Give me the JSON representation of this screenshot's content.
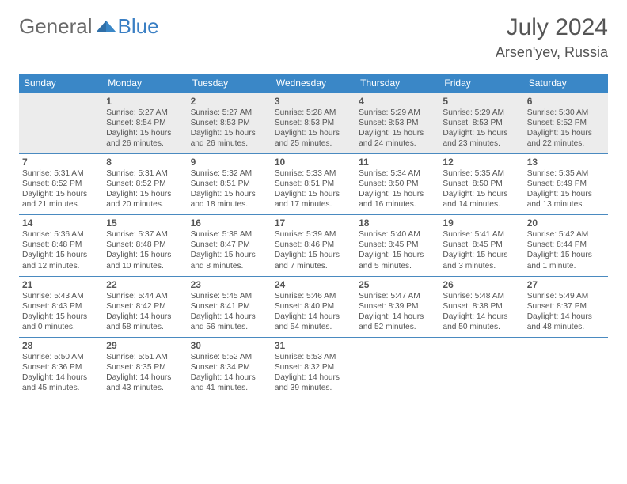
{
  "brand": {
    "general": "General",
    "blue": "Blue"
  },
  "title": "July 2024",
  "location": "Arsen'yev, Russia",
  "colors": {
    "header_bg": "#3a87c7",
    "header_text": "#ffffff",
    "cell_border": "#4a8ac0",
    "first_row_bg": "#ececec",
    "text": "#555555",
    "logo_grey": "#6a6a6a",
    "logo_blue": "#3a7fc4",
    "page_bg": "#ffffff"
  },
  "day_names": [
    "Sunday",
    "Monday",
    "Tuesday",
    "Wednesday",
    "Thursday",
    "Friday",
    "Saturday"
  ],
  "start_weekday": 1,
  "days": [
    {
      "n": 1,
      "sr": "5:27 AM",
      "ss": "8:54 PM",
      "dl": "15 hours and 26 minutes."
    },
    {
      "n": 2,
      "sr": "5:27 AM",
      "ss": "8:53 PM",
      "dl": "15 hours and 26 minutes."
    },
    {
      "n": 3,
      "sr": "5:28 AM",
      "ss": "8:53 PM",
      "dl": "15 hours and 25 minutes."
    },
    {
      "n": 4,
      "sr": "5:29 AM",
      "ss": "8:53 PM",
      "dl": "15 hours and 24 minutes."
    },
    {
      "n": 5,
      "sr": "5:29 AM",
      "ss": "8:53 PM",
      "dl": "15 hours and 23 minutes."
    },
    {
      "n": 6,
      "sr": "5:30 AM",
      "ss": "8:52 PM",
      "dl": "15 hours and 22 minutes."
    },
    {
      "n": 7,
      "sr": "5:31 AM",
      "ss": "8:52 PM",
      "dl": "15 hours and 21 minutes."
    },
    {
      "n": 8,
      "sr": "5:31 AM",
      "ss": "8:52 PM",
      "dl": "15 hours and 20 minutes."
    },
    {
      "n": 9,
      "sr": "5:32 AM",
      "ss": "8:51 PM",
      "dl": "15 hours and 18 minutes."
    },
    {
      "n": 10,
      "sr": "5:33 AM",
      "ss": "8:51 PM",
      "dl": "15 hours and 17 minutes."
    },
    {
      "n": 11,
      "sr": "5:34 AM",
      "ss": "8:50 PM",
      "dl": "15 hours and 16 minutes."
    },
    {
      "n": 12,
      "sr": "5:35 AM",
      "ss": "8:50 PM",
      "dl": "15 hours and 14 minutes."
    },
    {
      "n": 13,
      "sr": "5:35 AM",
      "ss": "8:49 PM",
      "dl": "15 hours and 13 minutes."
    },
    {
      "n": 14,
      "sr": "5:36 AM",
      "ss": "8:48 PM",
      "dl": "15 hours and 12 minutes."
    },
    {
      "n": 15,
      "sr": "5:37 AM",
      "ss": "8:48 PM",
      "dl": "15 hours and 10 minutes."
    },
    {
      "n": 16,
      "sr": "5:38 AM",
      "ss": "8:47 PM",
      "dl": "15 hours and 8 minutes."
    },
    {
      "n": 17,
      "sr": "5:39 AM",
      "ss": "8:46 PM",
      "dl": "15 hours and 7 minutes."
    },
    {
      "n": 18,
      "sr": "5:40 AM",
      "ss": "8:45 PM",
      "dl": "15 hours and 5 minutes."
    },
    {
      "n": 19,
      "sr": "5:41 AM",
      "ss": "8:45 PM",
      "dl": "15 hours and 3 minutes."
    },
    {
      "n": 20,
      "sr": "5:42 AM",
      "ss": "8:44 PM",
      "dl": "15 hours and 1 minute."
    },
    {
      "n": 21,
      "sr": "5:43 AM",
      "ss": "8:43 PM",
      "dl": "15 hours and 0 minutes."
    },
    {
      "n": 22,
      "sr": "5:44 AM",
      "ss": "8:42 PM",
      "dl": "14 hours and 58 minutes."
    },
    {
      "n": 23,
      "sr": "5:45 AM",
      "ss": "8:41 PM",
      "dl": "14 hours and 56 minutes."
    },
    {
      "n": 24,
      "sr": "5:46 AM",
      "ss": "8:40 PM",
      "dl": "14 hours and 54 minutes."
    },
    {
      "n": 25,
      "sr": "5:47 AM",
      "ss": "8:39 PM",
      "dl": "14 hours and 52 minutes."
    },
    {
      "n": 26,
      "sr": "5:48 AM",
      "ss": "8:38 PM",
      "dl": "14 hours and 50 minutes."
    },
    {
      "n": 27,
      "sr": "5:49 AM",
      "ss": "8:37 PM",
      "dl": "14 hours and 48 minutes."
    },
    {
      "n": 28,
      "sr": "5:50 AM",
      "ss": "8:36 PM",
      "dl": "14 hours and 45 minutes."
    },
    {
      "n": 29,
      "sr": "5:51 AM",
      "ss": "8:35 PM",
      "dl": "14 hours and 43 minutes."
    },
    {
      "n": 30,
      "sr": "5:52 AM",
      "ss": "8:34 PM",
      "dl": "14 hours and 41 minutes."
    },
    {
      "n": 31,
      "sr": "5:53 AM",
      "ss": "8:32 PM",
      "dl": "14 hours and 39 minutes."
    }
  ],
  "labels": {
    "sunrise": "Sunrise:",
    "sunset": "Sunset:",
    "daylight": "Daylight:"
  }
}
